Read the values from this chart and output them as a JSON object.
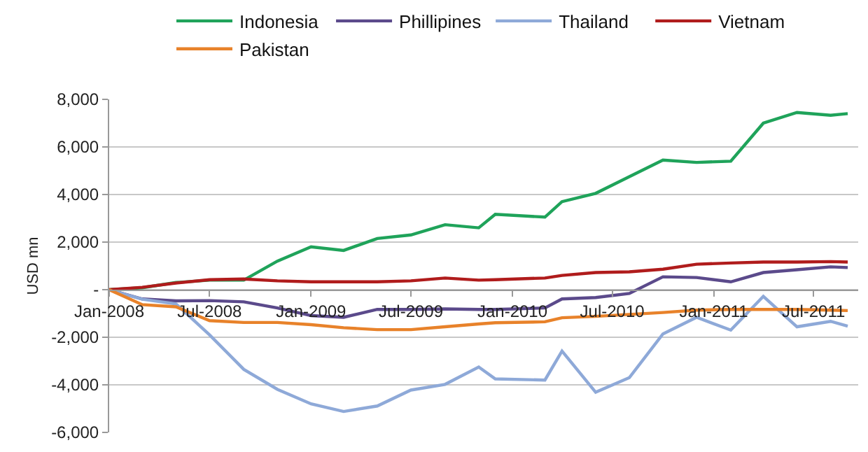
{
  "chart_data": {
    "type": "line",
    "ylabel": "USD mn",
    "x": [
      "2008-01",
      "2008-03",
      "2008-05",
      "2008-07",
      "2008-09",
      "2008-11",
      "2009-01",
      "2009-03",
      "2009-05",
      "2009-07",
      "2009-09",
      "2009-11",
      "2009-12",
      "2010-03",
      "2010-04",
      "2010-06",
      "2010-08",
      "2010-10",
      "2010-12",
      "2011-02",
      "2011-04",
      "2011-06",
      "2011-08",
      "2011-09"
    ],
    "series": [
      {
        "name": "Indonesia",
        "color": "#1fa35a",
        "values": [
          0,
          80,
          300,
          400,
          400,
          1200,
          1800,
          1650,
          2150,
          2300,
          2730,
          2600,
          3170,
          3050,
          3700,
          4050,
          4750,
          5450,
          5350,
          5400,
          7000,
          7450,
          7330,
          7400
        ]
      },
      {
        "name": "Phillipines",
        "color": "#5b4a8b",
        "values": [
          0,
          -390,
          -470,
          -460,
          -510,
          -770,
          -1090,
          -1160,
          -830,
          -830,
          -810,
          -830,
          -830,
          -770,
          -390,
          -330,
          -160,
          540,
          510,
          330,
          720,
          840,
          960,
          930
        ]
      },
      {
        "name": "Thailand",
        "color": "#8ea9d8",
        "values": [
          0,
          -400,
          -600,
          -1900,
          -3350,
          -4190,
          -4800,
          -5120,
          -4890,
          -4220,
          -3980,
          -3250,
          -3750,
          -3800,
          -2580,
          -4310,
          -3700,
          -1860,
          -1160,
          -1700,
          -280,
          -1560,
          -1330,
          -1530
        ]
      },
      {
        "name": "Vietnam",
        "color": "#b01c1c",
        "values": [
          0,
          100,
          280,
          420,
          450,
          370,
          330,
          330,
          330,
          370,
          490,
          400,
          420,
          490,
          600,
          720,
          750,
          860,
          1070,
          1120,
          1160,
          1160,
          1180,
          1160
        ]
      },
      {
        "name": "Pakistan",
        "color": "#e8822a",
        "values": [
          0,
          -630,
          -720,
          -1300,
          -1380,
          -1380,
          -1470,
          -1600,
          -1680,
          -1680,
          -1560,
          -1440,
          -1390,
          -1350,
          -1180,
          -1120,
          -1040,
          -960,
          -860,
          -830,
          -830,
          -830,
          -860,
          -880
        ]
      }
    ],
    "ylim": [
      -6000,
      8000
    ],
    "yticks": [
      {
        "value": -6000,
        "label": "-6,000"
      },
      {
        "value": -4000,
        "label": "-4,000"
      },
      {
        "value": -2000,
        "label": "-2,000"
      },
      {
        "value": 0,
        "label": "-"
      },
      {
        "value": 2000,
        "label": "2,000"
      },
      {
        "value": 4000,
        "label": "4,000"
      },
      {
        "value": 6000,
        "label": "6,000"
      },
      {
        "value": 8000,
        "label": "8,000"
      }
    ],
    "xlim": [
      "2008-01-01",
      "2011-09-20"
    ],
    "xticks": [
      {
        "value": "2008-01",
        "label": "Jan-2008"
      },
      {
        "value": "2008-07",
        "label": "Jul-2008"
      },
      {
        "value": "2009-01",
        "label": "Jan-2009"
      },
      {
        "value": "2009-07",
        "label": "Jul-2009"
      },
      {
        "value": "2010-01",
        "label": "Jan-2010"
      },
      {
        "value": "2010-07",
        "label": "Jul-2010"
      },
      {
        "value": "2011-01",
        "label": "Jan-2011"
      },
      {
        "value": "2011-07",
        "label": "Jul-2011"
      }
    ],
    "grid": "y",
    "legend": "top",
    "marker": "none",
    "line_style": "solid"
  }
}
